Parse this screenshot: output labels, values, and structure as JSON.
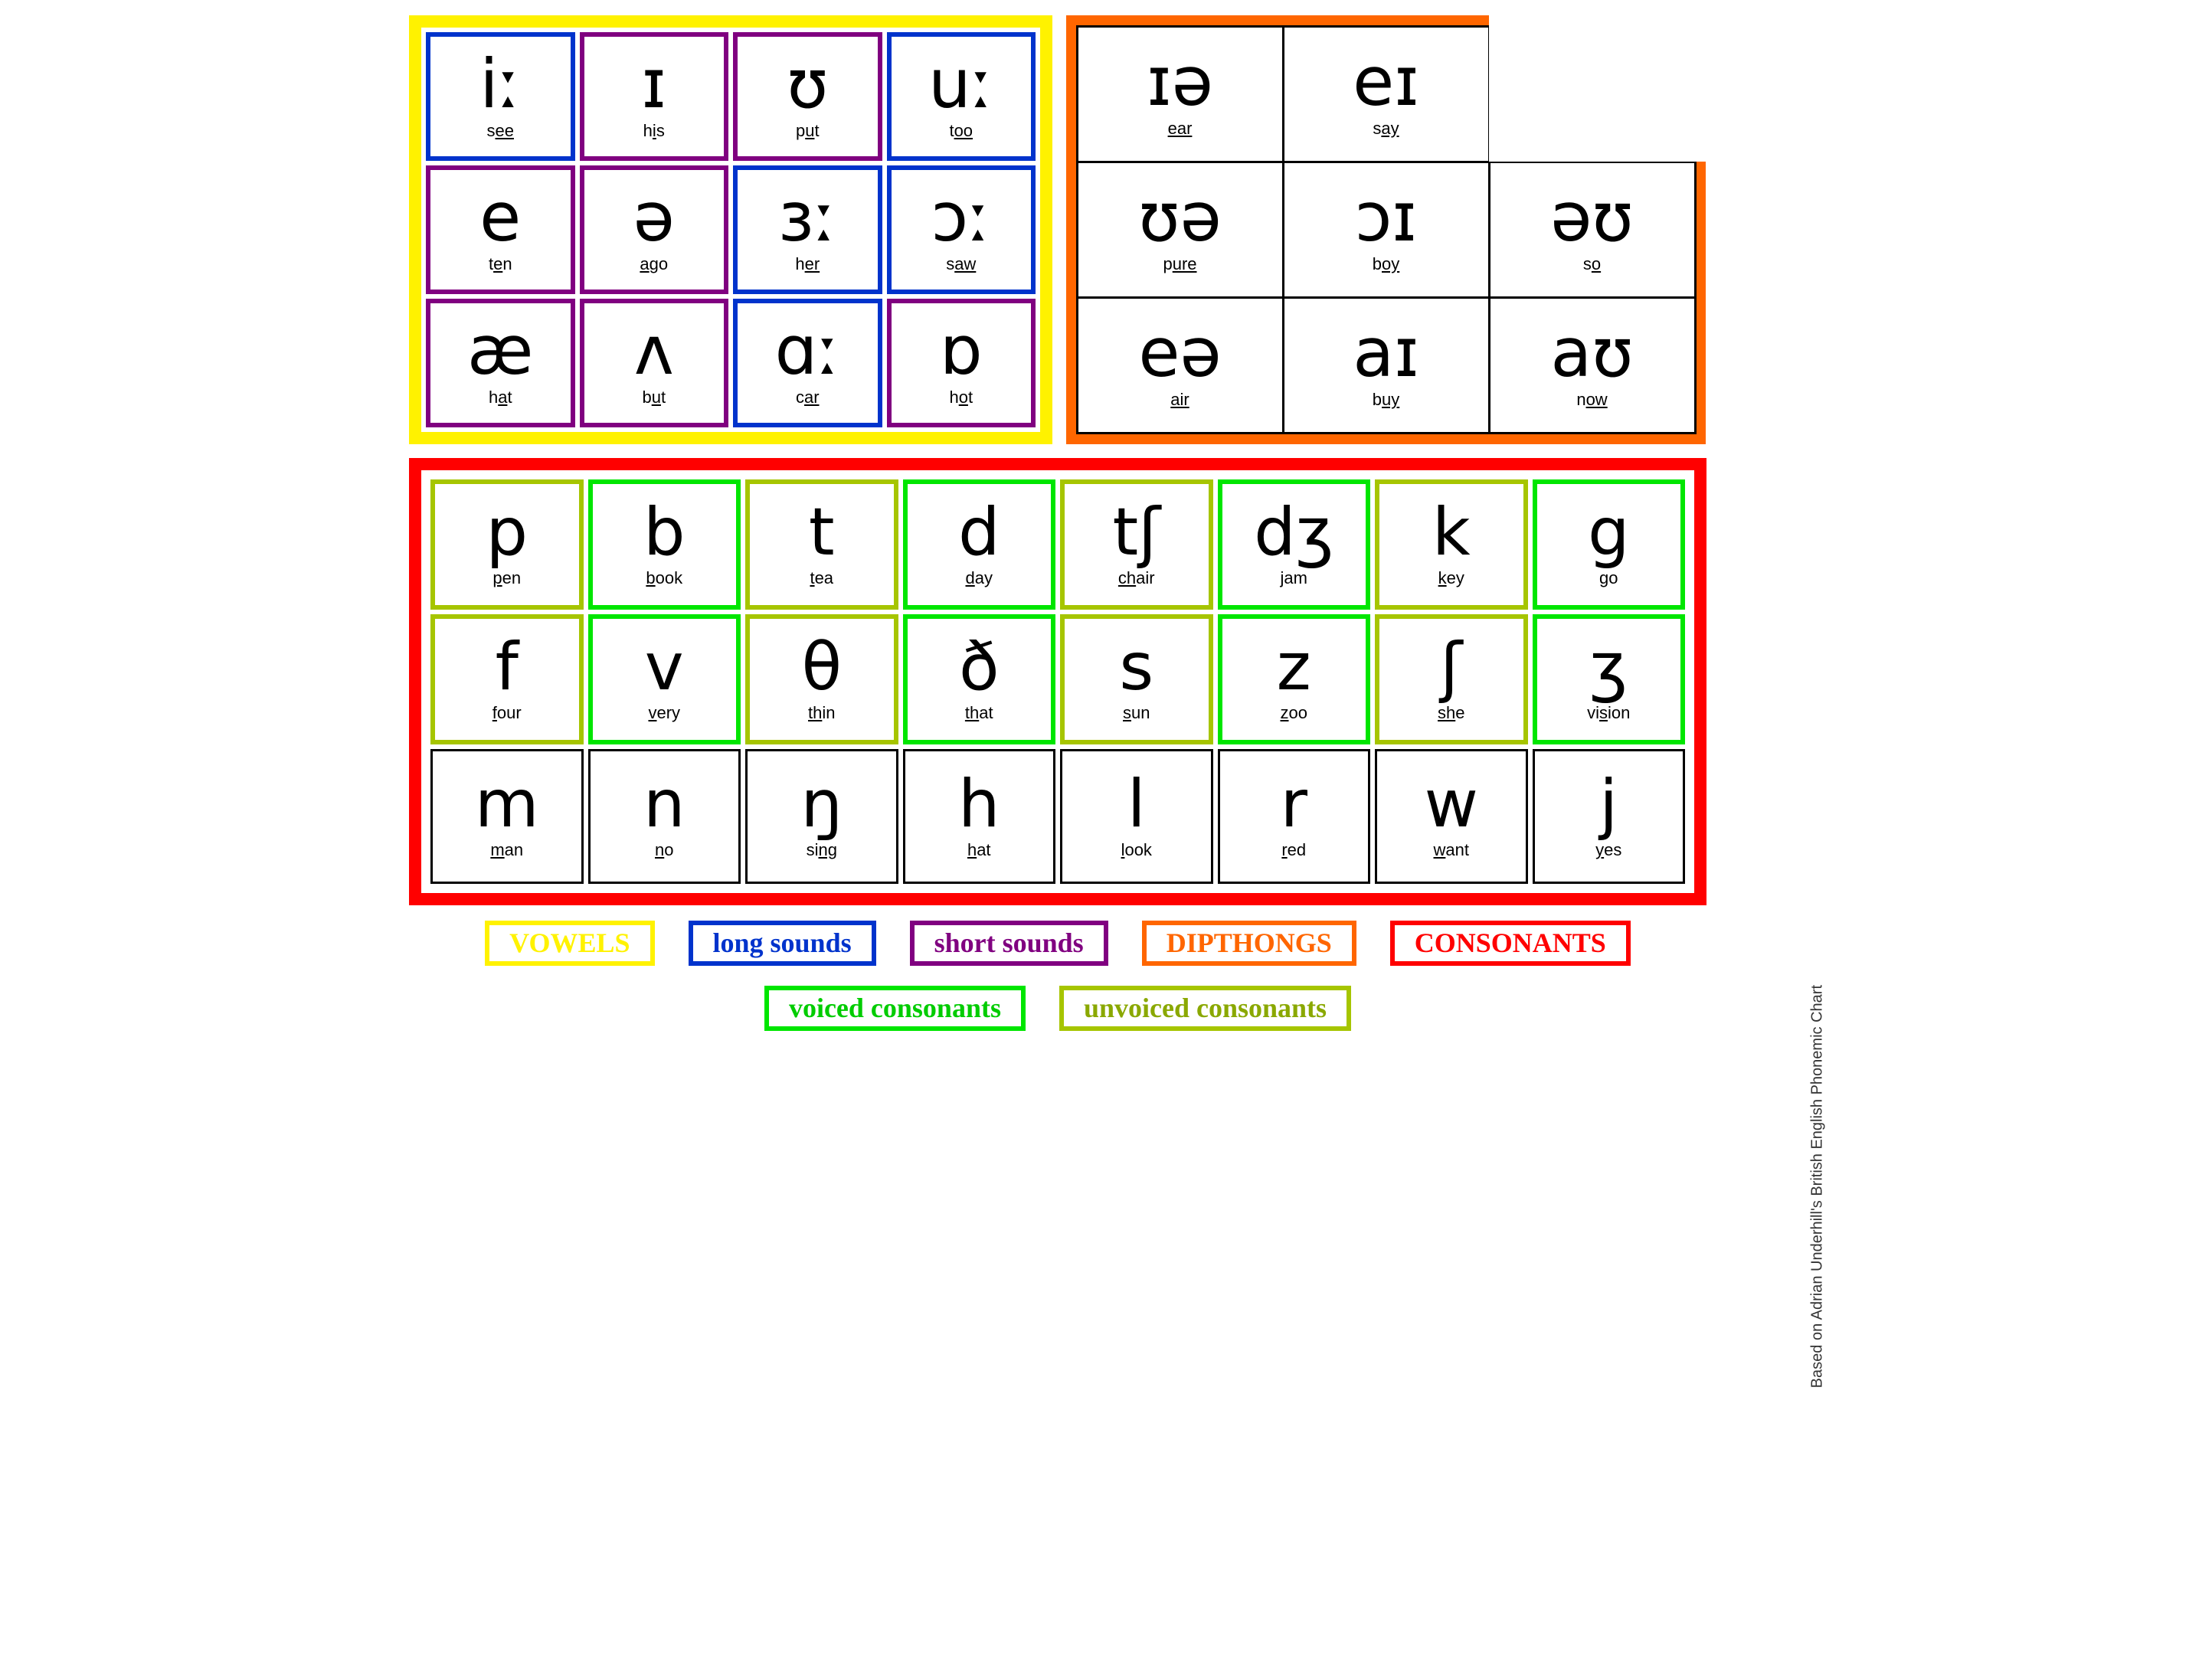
{
  "colors": {
    "vowel_panel_border": "#fff200",
    "diphthong_panel_border": "#ff6600",
    "consonant_panel_border": "#ff0000",
    "long_border": "#0033cc",
    "short_border": "#800080",
    "voiced_border": "#00e600",
    "unvoiced_border": "#a6c500",
    "black_border": "#000000",
    "white": "#ffffff"
  },
  "vowels": [
    {
      "sym": "iː",
      "pre": "s",
      "u": "ee",
      "post": "",
      "border": "long"
    },
    {
      "sym": "ɪ",
      "pre": "h",
      "u": "i",
      "post": "s",
      "border": "short"
    },
    {
      "sym": "ʊ",
      "pre": "p",
      "u": "u",
      "post": "t",
      "border": "short"
    },
    {
      "sym": "uː",
      "pre": "t",
      "u": "oo",
      "post": "",
      "border": "long"
    },
    {
      "sym": "e",
      "pre": "t",
      "u": "e",
      "post": "n",
      "border": "short"
    },
    {
      "sym": "ə",
      "pre": "",
      "u": "a",
      "post": "go",
      "border": "short"
    },
    {
      "sym": "ɜː",
      "pre": "h",
      "u": "er",
      "post": "",
      "border": "long"
    },
    {
      "sym": "ɔː",
      "pre": "s",
      "u": "aw",
      "post": "",
      "border": "long"
    },
    {
      "sym": "æ",
      "pre": "h",
      "u": "a",
      "post": "t",
      "border": "short"
    },
    {
      "sym": "ʌ",
      "pre": "b",
      "u": "u",
      "post": "t",
      "border": "short"
    },
    {
      "sym": "ɑː",
      "pre": "c",
      "u": "ar",
      "post": "",
      "border": "long"
    },
    {
      "sym": "ɒ",
      "pre": "h",
      "u": "o",
      "post": "t",
      "border": "short"
    }
  ],
  "diphthongs": [
    {
      "sym": "ɪə",
      "pre": "",
      "u": "ear",
      "post": ""
    },
    {
      "sym": "eɪ",
      "pre": "s",
      "u": "ay",
      "post": ""
    },
    null,
    {
      "sym": "ʊə",
      "pre": "p",
      "u": "ure",
      "post": ""
    },
    {
      "sym": "ɔɪ",
      "pre": "b",
      "u": "oy",
      "post": ""
    },
    {
      "sym": "əʊ",
      "pre": "s",
      "u": "o",
      "post": ""
    },
    {
      "sym": "eə",
      "pre": "",
      "u": "air",
      "post": ""
    },
    {
      "sym": "aɪ",
      "pre": "b",
      "u": "uy",
      "post": ""
    },
    {
      "sym": "aʊ",
      "pre": "n",
      "u": "ow",
      "post": ""
    }
  ],
  "consonants": [
    {
      "sym": "p",
      "pre": "",
      "u": "p",
      "post": "en",
      "border": "unvoiced"
    },
    {
      "sym": "b",
      "pre": "",
      "u": "b",
      "post": "ook",
      "border": "voiced"
    },
    {
      "sym": "t",
      "pre": "",
      "u": "t",
      "post": "ea",
      "border": "unvoiced"
    },
    {
      "sym": "d",
      "pre": "",
      "u": "d",
      "post": "ay",
      "border": "voiced"
    },
    {
      "sym": "tʃ",
      "pre": "",
      "u": "ch",
      "post": "air",
      "border": "unvoiced"
    },
    {
      "sym": "dʒ",
      "pre": "",
      "u": "j",
      "post": "am",
      "border": "voiced"
    },
    {
      "sym": "k",
      "pre": "",
      "u": "k",
      "post": "ey",
      "border": "unvoiced"
    },
    {
      "sym": "g",
      "pre": "",
      "u": "g",
      "post": "o",
      "border": "voiced"
    },
    {
      "sym": "f",
      "pre": "",
      "u": "f",
      "post": "our",
      "border": "unvoiced"
    },
    {
      "sym": "v",
      "pre": "",
      "u": "v",
      "post": "ery",
      "border": "voiced"
    },
    {
      "sym": "θ",
      "pre": "",
      "u": "th",
      "post": "in",
      "border": "unvoiced"
    },
    {
      "sym": "ð",
      "pre": "",
      "u": "th",
      "post": "at",
      "border": "voiced"
    },
    {
      "sym": "s",
      "pre": "",
      "u": "s",
      "post": "un",
      "border": "unvoiced"
    },
    {
      "sym": "z",
      "pre": "",
      "u": "z",
      "post": "oo",
      "border": "voiced"
    },
    {
      "sym": "ʃ",
      "pre": "",
      "u": "sh",
      "post": "e",
      "border": "unvoiced"
    },
    {
      "sym": "ʒ",
      "pre": "vi",
      "u": "s",
      "post": "ion",
      "border": "voiced"
    },
    {
      "sym": "m",
      "pre": "",
      "u": "m",
      "post": "an",
      "border": "black"
    },
    {
      "sym": "n",
      "pre": "",
      "u": "n",
      "post": "o",
      "border": "black"
    },
    {
      "sym": "ŋ",
      "pre": "si",
      "u": "ng",
      "post": "",
      "border": "black"
    },
    {
      "sym": "h",
      "pre": "",
      "u": "h",
      "post": "at",
      "border": "black"
    },
    {
      "sym": "l",
      "pre": "",
      "u": "l",
      "post": "ook",
      "border": "black"
    },
    {
      "sym": "r",
      "pre": "",
      "u": "r",
      "post": "ed",
      "border": "black"
    },
    {
      "sym": "w",
      "pre": "",
      "u": "w",
      "post": "ant",
      "border": "black"
    },
    {
      "sym": "j",
      "pre": "",
      "u": "y",
      "post": "es",
      "border": "black"
    }
  ],
  "legend": [
    {
      "label": "VOWELS",
      "border": "vowel_panel_border",
      "text": "#fff200"
    },
    {
      "label": "long sounds",
      "border": "long_border",
      "text": "#0033cc"
    },
    {
      "label": "short sounds",
      "border": "short_border",
      "text": "#800080"
    },
    {
      "label": "DIPTHONGS",
      "border": "diphthong_panel_border",
      "text": "#ff6600"
    },
    {
      "label": "CONSONANTS",
      "border": "consonant_panel_border",
      "text": "#ff0000"
    },
    {
      "label": "voiced consonants",
      "border": "voiced_border",
      "text": "#00cc00"
    },
    {
      "label": "unvoiced consonants",
      "border": "unvoiced_border",
      "text": "#8aa800"
    }
  ],
  "credit": "Based on Adrian Underhill's British English Phonemic Chart"
}
